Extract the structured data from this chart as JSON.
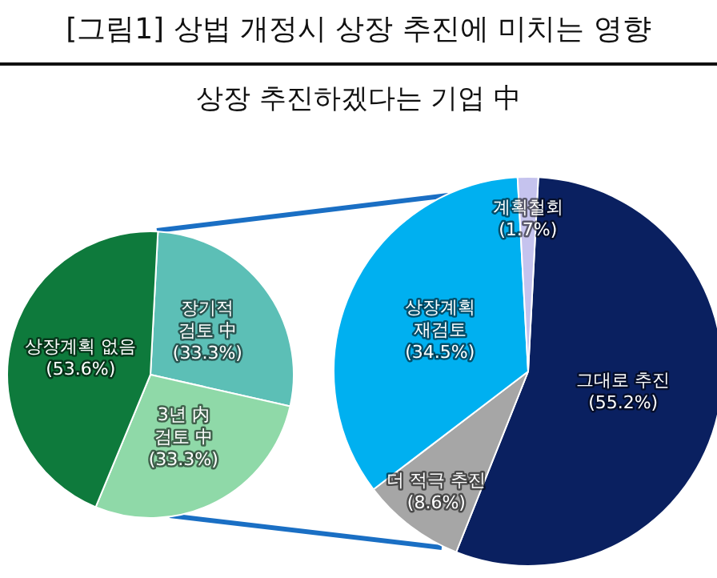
{
  "chart_data": [
    {
      "type": "pie",
      "title": "[그림1] 상법 개정시 상장 추진에 미치는 영향",
      "subtitle": "상장 추진하겠다는 기업 中",
      "categories": [
        "장기적\n검토 中",
        "3년 内\n검토 中",
        "상장계획 없음"
      ],
      "values": [
        33.3,
        33.3,
        53.6
      ],
      "value_labels": [
        "(33.3%)",
        "(33.3%)",
        "(53.6%)"
      ],
      "colors": [
        "#5cbfb6",
        "#8fd9a8",
        "#0e7a3c"
      ]
    },
    {
      "type": "pie",
      "categories": [
        "그대로 추진",
        "더 적극 추진",
        "상장계획\n재검토",
        "계획철회"
      ],
      "values": [
        55.2,
        8.6,
        34.5,
        1.7
      ],
      "value_labels": [
        "(55.2%)",
        "(8.6%)",
        "(34.5%)",
        "(1.7%)"
      ],
      "colors": [
        "#0a2060",
        "#a6a6a6",
        "#00b0f0",
        "#c5c3ee"
      ]
    }
  ]
}
